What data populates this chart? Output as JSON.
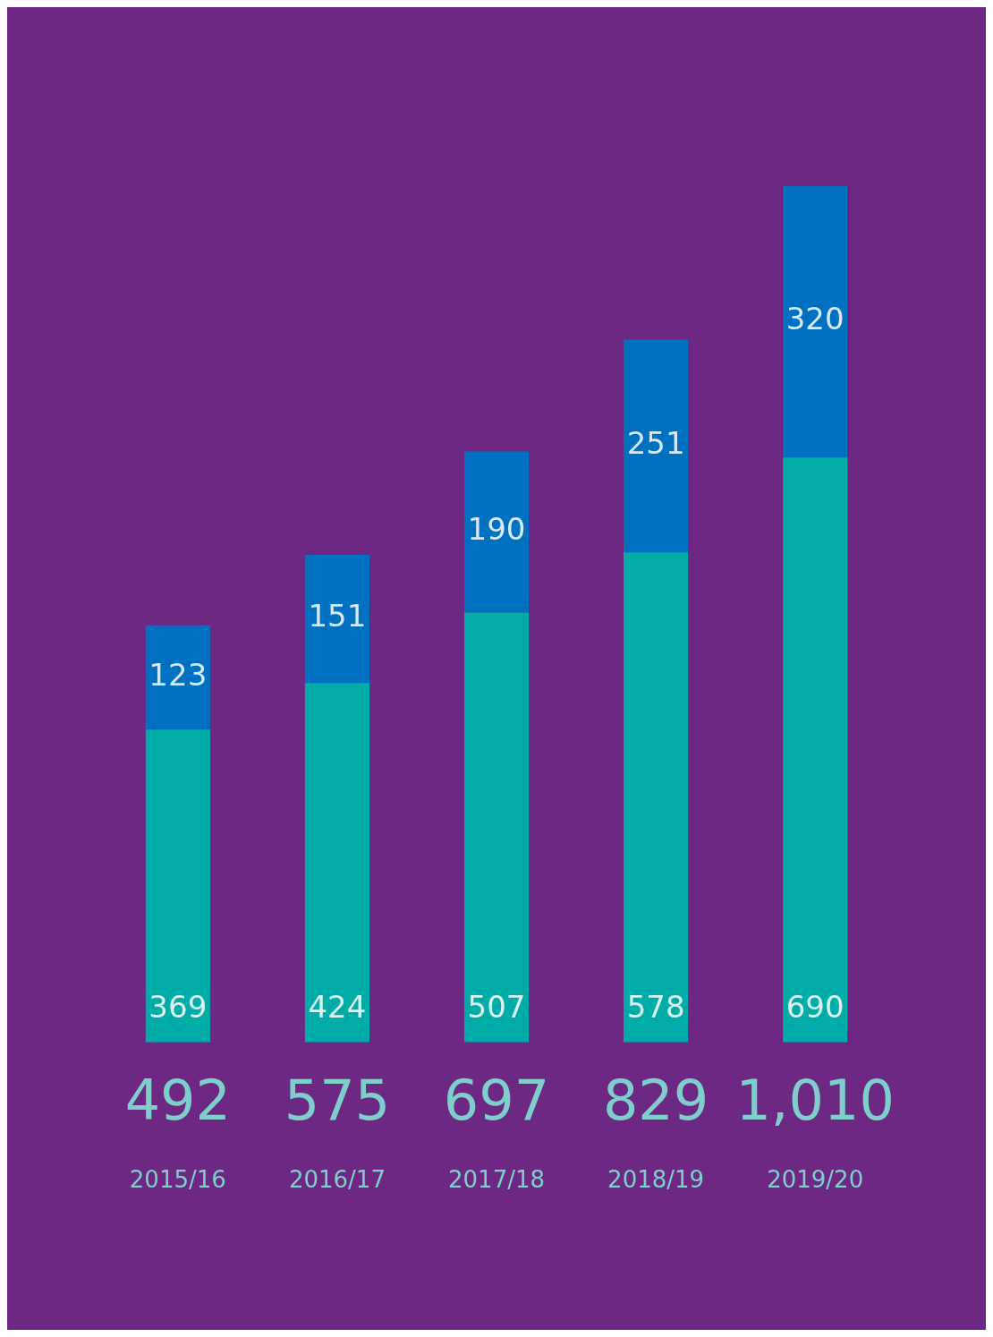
{
  "chart_data": {
    "type": "bar",
    "stacked": true,
    "data_labels": true,
    "legend": false,
    "grid": false,
    "tick_labels": "x",
    "categories": [
      "2015/16",
      "2016/17",
      "2017/18",
      "2018/19",
      "2019/20"
    ],
    "series": [
      {
        "color": "#00aca8",
        "values": [
          369,
          424,
          507,
          578,
          690
        ]
      },
      {
        "color": "#0070c0",
        "values": [
          123,
          151,
          190,
          251,
          320
        ]
      }
    ],
    "totals": [
      "492",
      "575",
      "697",
      "829",
      "1,010"
    ]
  }
}
